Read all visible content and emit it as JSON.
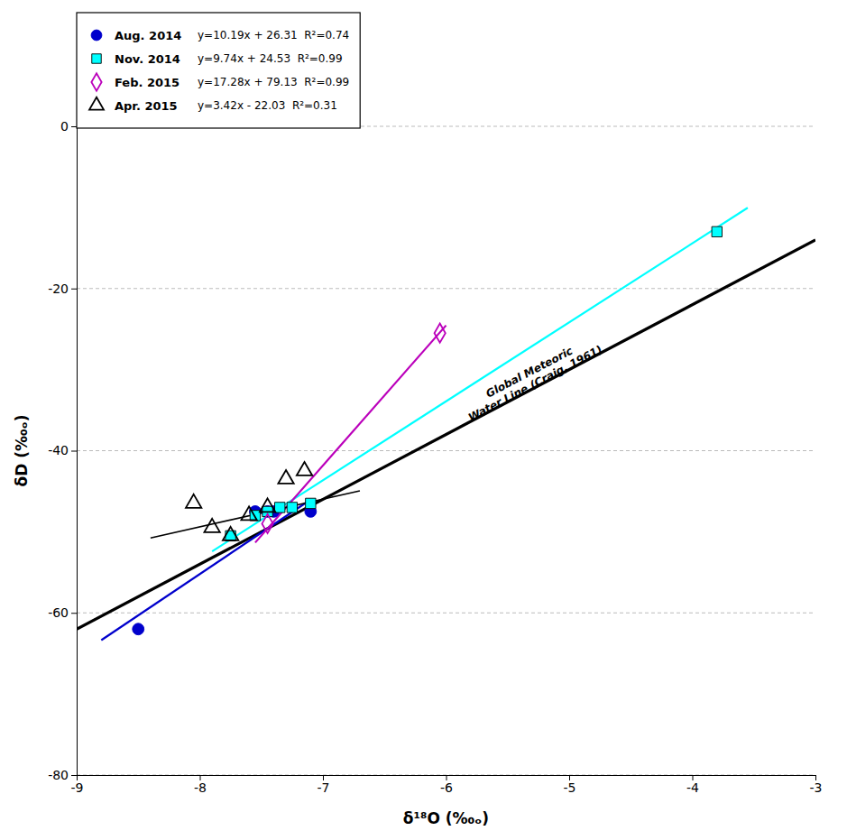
{
  "chart_data": {
    "type": "scatter",
    "x_label": "δ¹⁸O (‰ₒ)",
    "y_label": "δD (‰ₒ)",
    "xlim": [
      -9,
      -3
    ],
    "ylim": [
      -80,
      0
    ],
    "xticks": [
      -9,
      -8,
      -7,
      -6,
      -5,
      -4,
      -3
    ],
    "yticks": [
      0,
      -20,
      -40,
      -60,
      -80
    ],
    "grid": "y",
    "legend": "upper left",
    "series": [
      {
        "name": "Aug. 2014",
        "equation": "y=10.19x + 26.31  R²=0.74",
        "color": "#0000CC",
        "marker": "circle",
        "x": [
          -8.5,
          -7.55,
          -7.45,
          -7.4,
          -7.1
        ],
        "y": [
          -62.0,
          -47.5,
          -47.5,
          -47.5,
          -47.5
        ],
        "fit_x": [
          -8.8,
          -7.1
        ],
        "fit_y": [
          -63.362,
          -46.039
        ]
      },
      {
        "name": "Nov. 2014",
        "equation": "y=9.74x + 24.53  R²=0.99",
        "color": "#00FFFF",
        "marker": "square",
        "x": [
          -7.75,
          -7.55,
          -7.45,
          -7.35,
          -7.25,
          -7.1,
          -3.8
        ],
        "y": [
          -50.5,
          -48.0,
          -47.5,
          -47.0,
          -47.0,
          -46.5,
          -13.0
        ],
        "fit_x": [
          -7.9,
          -3.55
        ],
        "fit_y": [
          -52.416,
          -10.047
        ]
      },
      {
        "name": "Feb. 2015",
        "equation": "y=17.28x + 79.13  R²=0.99",
        "color": "#BB00BB",
        "marker": "diamond-open",
        "x": [
          -7.45,
          -6.05
        ],
        "y": [
          -49.0,
          -25.5
        ],
        "fit_x": [
          -7.55,
          -6.0
        ],
        "fit_y": [
          -51.334,
          -24.55
        ]
      },
      {
        "name": "Apr. 2015",
        "equation": "y=3.42x - 22.03  R²=0.31",
        "color": "#000000",
        "marker": "triangle-open",
        "x": [
          -8.05,
          -7.9,
          -7.75,
          -7.6,
          -7.45,
          -7.3,
          -7.15
        ],
        "y": [
          -46.5,
          -49.5,
          -50.5,
          -48.0,
          -47.0,
          -43.5,
          -42.5
        ],
        "fit_x": [
          -8.4,
          -6.7
        ],
        "fit_y": [
          -50.758,
          -44.944
        ]
      }
    ],
    "reference_lines": [
      {
        "x": [
          -9,
          -3
        ],
        "y": [
          -62,
          -14
        ],
        "color": "#000000"
      }
    ],
    "annotations": [
      {
        "text": "Global Meteoric\nWater Line (Craig, 1961)",
        "x": -5.3,
        "y": -31
      }
    ]
  }
}
